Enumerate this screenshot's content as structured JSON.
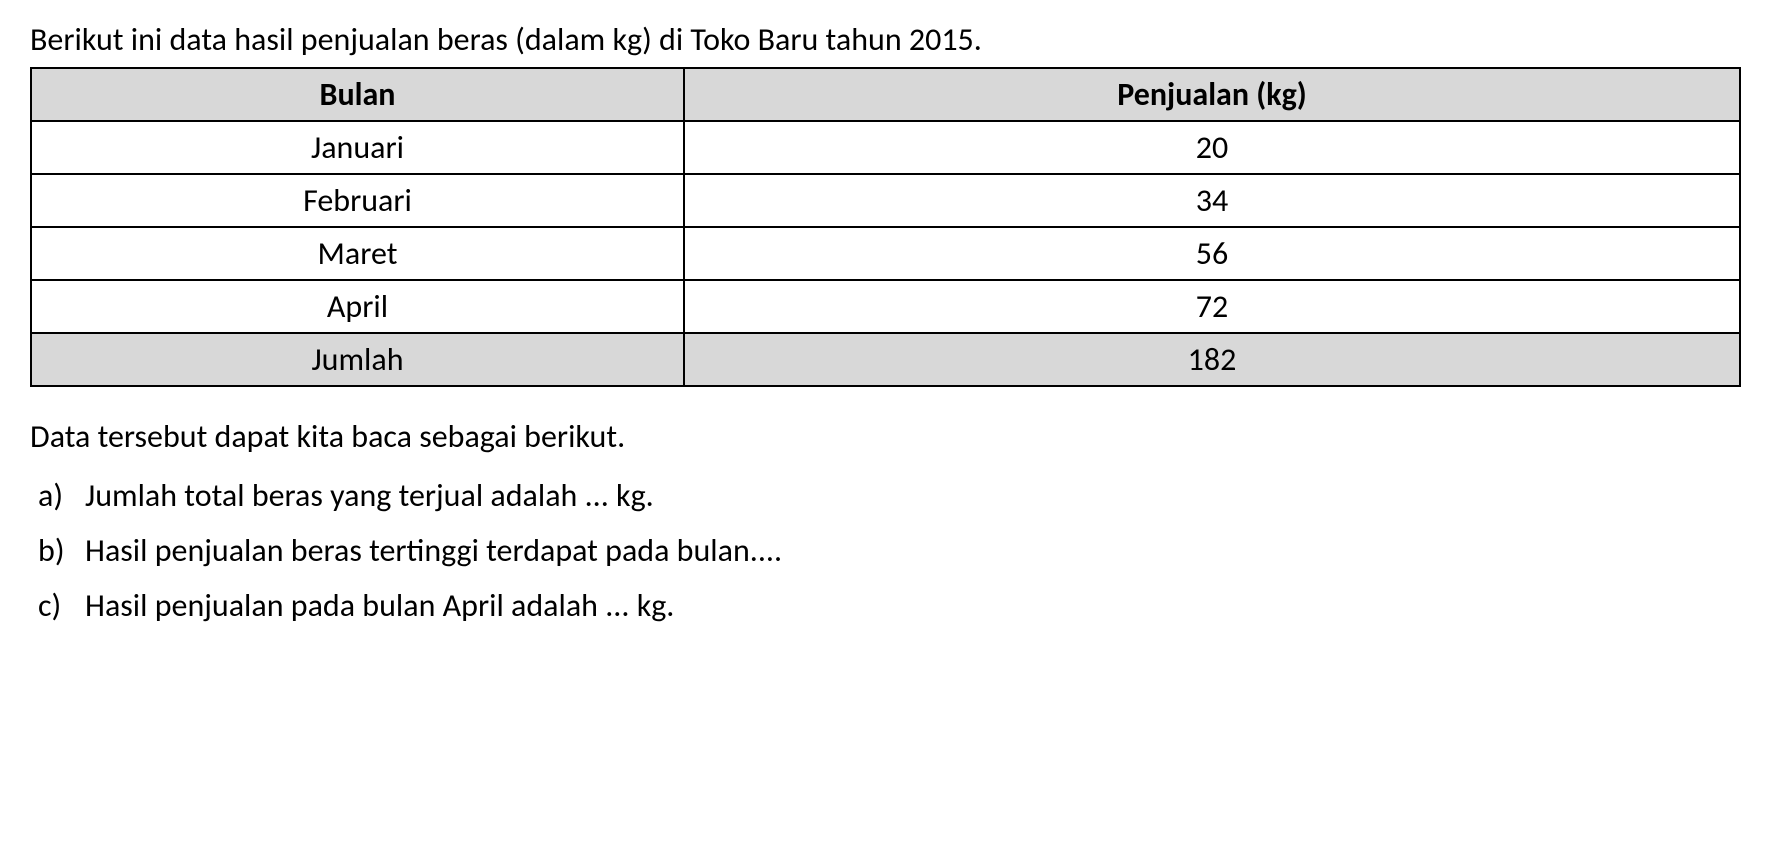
{
  "intro": "Berikut ini data hasil penjualan beras (dalam kg) di Toko Baru tahun 2015.",
  "table": {
    "headers": {
      "month": "Bulan",
      "sales": "Penjualan (kg)"
    },
    "rows": [
      {
        "month": "Januari",
        "sales": "20"
      },
      {
        "month": "Februari",
        "sales": "34"
      },
      {
        "month": "Maret",
        "sales": "56"
      },
      {
        "month": "April",
        "sales": "72"
      }
    ],
    "total": {
      "label": "Jumlah",
      "value": "182"
    },
    "styling": {
      "header_bg": "#d8d8d8",
      "total_bg": "#d8d8d8",
      "border_color": "#000000",
      "border_width": 2,
      "font_size": 32,
      "text_align": "center",
      "header_font_weight": "bold"
    }
  },
  "reading_text": "Data tersebut dapat kita baca sebagai berikut.",
  "questions": [
    {
      "letter": "a)",
      "text": "Jumlah total beras yang terjual adalah ... kg."
    },
    {
      "letter": "b)",
      "text": "Hasil penjualan beras tertinggi terdapat pada bulan...."
    },
    {
      "letter": "c)",
      "text": "Hasil penjualan pada bulan April adalah ... kg."
    }
  ],
  "page_styling": {
    "background_color": "#ffffff",
    "text_color": "#000000",
    "font_family": "Calibri, Arial, sans-serif",
    "body_font_size": 32
  }
}
